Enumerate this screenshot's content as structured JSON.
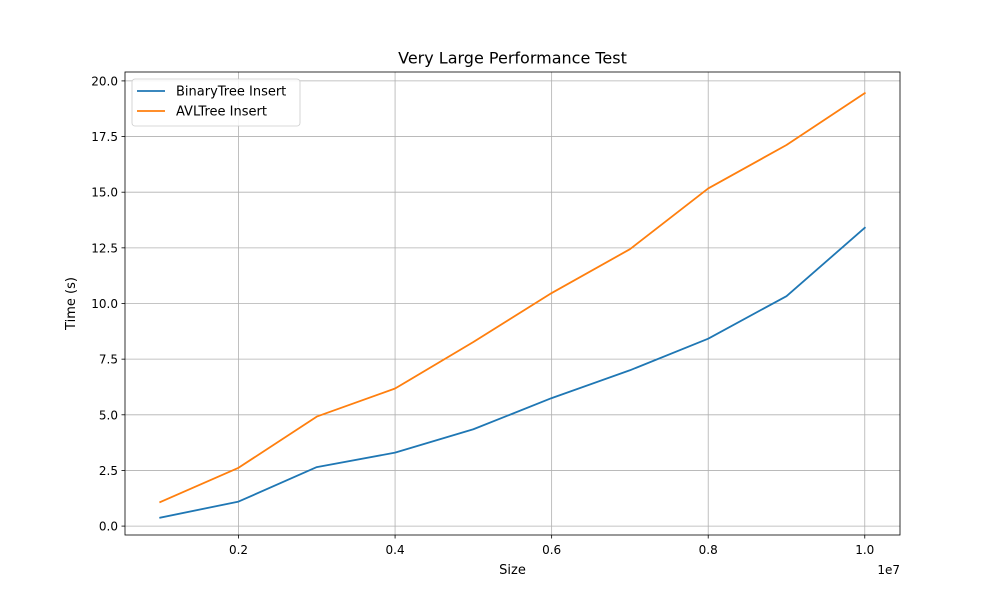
{
  "chart_data": {
    "type": "line",
    "title": "Very Large Performance Test",
    "xlabel": "Size",
    "ylabel": "Time (s)",
    "x_offset_label": "1e7",
    "x": [
      1000000,
      2000000,
      3000000,
      4000000,
      5000000,
      6000000,
      7000000,
      8000000,
      9000000,
      10000000
    ],
    "xlim": [
      550000,
      10450000
    ],
    "ylim": [
      -0.4,
      20.4
    ],
    "x_ticks": [
      2000000,
      4000000,
      6000000,
      8000000,
      10000000
    ],
    "x_tick_labels": [
      "0.2",
      "0.4",
      "0.6",
      "0.8",
      "1.0"
    ],
    "y_ticks": [
      0.0,
      2.5,
      5.0,
      7.5,
      10.0,
      12.5,
      15.0,
      17.5,
      20.0
    ],
    "y_tick_labels": [
      "0.0",
      "2.5",
      "5.0",
      "7.5",
      "10.0",
      "12.5",
      "15.0",
      "17.5",
      "20.0"
    ],
    "grid": true,
    "legend_position": "upper-left",
    "series": [
      {
        "name": "BinaryTree Insert",
        "color": "#1f77b4",
        "values": [
          0.38,
          1.1,
          2.65,
          3.3,
          4.35,
          5.75,
          7.0,
          8.42,
          10.33,
          13.4
        ]
      },
      {
        "name": "AVLTree Insert",
        "color": "#ff7f0e",
        "values": [
          1.08,
          2.62,
          4.92,
          6.18,
          8.27,
          10.47,
          12.44,
          15.17,
          17.12,
          19.45
        ]
      }
    ]
  }
}
